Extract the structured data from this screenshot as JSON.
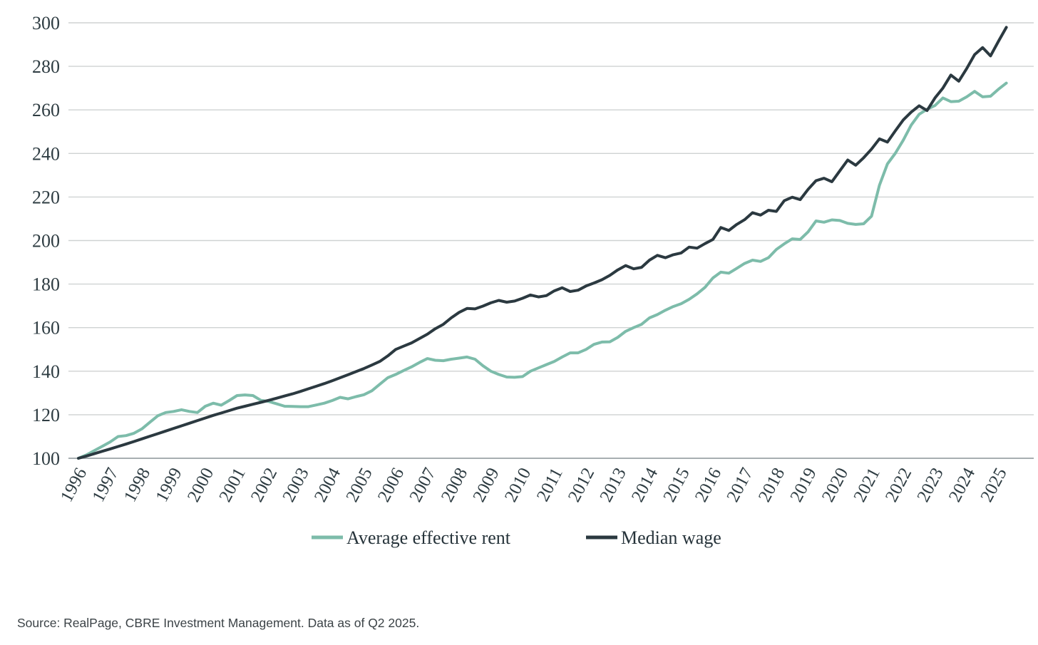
{
  "source_note": "Source: RealPage, CBRE Investment Management. Data as of Q2 2025.",
  "colors": {
    "rent_line": "#7dbcaa",
    "wage_line": "#2b3940",
    "gridline": "#cfd2d2",
    "baseline": "#8a9397",
    "tick_text": "#2e3c42",
    "background": "#ffffff"
  },
  "chart_data": {
    "type": "line",
    "title": "",
    "xlabel": "",
    "ylabel": "",
    "frequency": "quarterly",
    "grid": "horizontal only",
    "legend_position": "bottom-center",
    "ylim": [
      100,
      300
    ],
    "y_ticks": [
      100,
      120,
      140,
      160,
      180,
      200,
      220,
      240,
      260,
      280,
      300
    ],
    "x_ticks": [
      "1996",
      "1997",
      "1998",
      "1999",
      "2000",
      "2001",
      "2002",
      "2003",
      "2004",
      "2005",
      "2006",
      "2007",
      "2008",
      "2009",
      "2010",
      "2011",
      "2012",
      "2013",
      "2014",
      "2015",
      "2016",
      "2017",
      "2018",
      "2019",
      "2020",
      "2021",
      "2022",
      "2023",
      "2024",
      "2025"
    ],
    "x_start": "1996 Q1",
    "x_end": "2025 Q2",
    "index_base": "1996 = 100",
    "series": [
      {
        "name": "Average effective rent",
        "color": "#7dbcaa",
        "values": [
          100,
          101.5,
          103.5,
          105.5,
          107.5,
          110,
          110.4,
          111.5,
          113.5,
          116.5,
          119.5,
          121,
          121.5,
          122.3,
          121.5,
          121,
          123.9,
          125.3,
          124.4,
          126.5,
          128.8,
          129.1,
          128.8,
          126.6,
          126.1,
          125,
          123.9,
          123.8,
          123.7,
          123.7,
          124.5,
          125.3,
          126.5,
          128,
          127.3,
          128.3,
          129.2,
          131,
          134,
          137,
          138.5,
          140.3,
          142,
          144,
          145.8,
          145,
          144.8,
          145.5,
          146,
          146.5,
          145.5,
          142.5,
          140,
          138.5,
          137.3,
          137.2,
          137.5,
          140,
          141.5,
          143,
          144.5,
          146.5,
          148.4,
          148.4,
          150,
          152.3,
          153.4,
          153.5,
          155.5,
          158.3,
          160,
          161.5,
          164.5,
          166,
          168,
          169.7,
          171,
          173,
          175.5,
          178.5,
          182.8,
          185.5,
          185,
          187.2,
          189.5,
          191,
          190.4,
          192.1,
          195.9,
          198.5,
          200.8,
          200.5,
          204,
          209,
          208.4,
          209.5,
          209.2,
          207.9,
          207.4,
          207.7,
          211.2,
          225.4,
          235.2,
          240.1,
          246.1,
          253,
          258,
          260.3,
          262,
          265.5,
          263.8,
          264,
          266,
          268.5,
          266,
          266.3,
          269.5,
          272.3
        ]
      },
      {
        "name": "Median wage",
        "color": "#2b3940",
        "values": [
          100,
          101,
          102.1,
          103.2,
          104.3,
          105.4,
          106.5,
          107.7,
          108.9,
          110.1,
          111.3,
          112.5,
          113.7,
          114.9,
          116.1,
          117.3,
          118.5,
          119.7,
          120.8,
          121.9,
          123,
          123.9,
          124.8,
          125.7,
          126.6,
          127.6,
          128.6,
          129.6,
          130.7,
          131.9,
          133.1,
          134.3,
          135.6,
          137,
          138.4,
          139.8,
          141.2,
          142.8,
          144.5,
          147,
          150,
          151.5,
          153,
          155,
          157,
          159.5,
          161.5,
          164.5,
          167,
          168.8,
          168.6,
          169.9,
          171.4,
          172.5,
          171.7,
          172.2,
          173.5,
          175,
          174.1,
          174.7,
          176.9,
          178.3,
          176.6,
          177.2,
          179.1,
          180.5,
          182,
          184,
          186.5,
          188.5,
          187,
          187.7,
          191,
          193.2,
          192.1,
          193.5,
          194.3,
          197,
          196.5,
          198.6,
          200.5,
          206,
          204.6,
          207.4,
          209.6,
          212.8,
          211.7,
          213.9,
          213.4,
          218.3,
          219.9,
          218.8,
          223.5,
          227.5,
          228.6,
          227,
          232,
          237,
          234.6,
          238,
          242,
          246.7,
          245.2,
          250.4,
          255.4,
          259,
          261.9,
          259.7,
          265.5,
          270,
          276,
          273.2,
          279,
          285.4,
          288.6,
          284.8,
          291.5,
          297.9
        ]
      }
    ]
  }
}
